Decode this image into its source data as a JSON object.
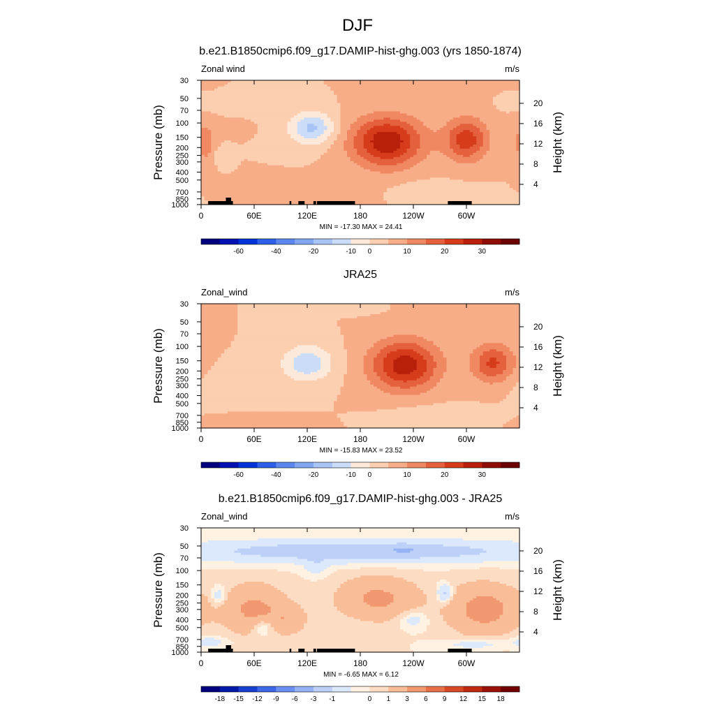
{
  "figure_title": "DJF",
  "palettes": {
    "full": [
      "#00007f",
      "#0011b2",
      "#0032d8",
      "#2e5fe8",
      "#5a86ee",
      "#82a6f2",
      "#a8c3f6",
      "#cbdcf8",
      "#fde9da",
      "#fccfb1",
      "#f7ad88",
      "#f08862",
      "#e5613d",
      "#d63c1c",
      "#b8200b",
      "#8e0d05",
      "#6b0000"
    ],
    "diff": [
      "#00007f",
      "#001aa8",
      "#1a3fd0",
      "#3d67e6",
      "#6b8ff0",
      "#95b2f4",
      "#bcd0f8",
      "#dce8fb",
      "#fff2e2",
      "#fddcc4",
      "#f9bd98",
      "#f29870",
      "#e87049",
      "#d84a26",
      "#bf2a10",
      "#9a1207",
      "#700000"
    ]
  },
  "chart_data": [
    {
      "type": "heatmap",
      "title": "b.e21.B1850cmip6.f09_g17.DAMIP-hist-ghg.003 (yrs 1850-1874)",
      "left_label": "Zonal wind",
      "unit": "m/s",
      "ylabel": "Pressure (mb)",
      "ylabel_right": "Height (km)",
      "x_ticks": [
        "0",
        "60E",
        "120E",
        "180",
        "120W",
        "60W"
      ],
      "y_ticks": [
        "30",
        "50",
        "70",
        "100",
        "150",
        "200",
        "250",
        "300",
        "400",
        "500",
        "700",
        "850",
        "1000"
      ],
      "y_ticks_right": [
        "20",
        "16",
        "12",
        "8",
        "4"
      ],
      "stats": "MIN = -17.30  MAX =  24.41",
      "colorbar_labels": [
        "-60",
        "-40",
        "-20",
        "-10",
        "0",
        "10",
        "20",
        "30"
      ],
      "palette": "full",
      "levels": [
        -70,
        -60,
        -50,
        -40,
        -30,
        -20,
        -15,
        -10,
        -5,
        0,
        5,
        10,
        15,
        20,
        25,
        30,
        35
      ],
      "features": [
        {
          "lon": 125,
          "p": 115,
          "amp": -16,
          "slon": 26,
          "sp": 0.45
        },
        {
          "lon": 210,
          "p": 170,
          "amp": 24,
          "slon": 40,
          "sp": 0.7
        },
        {
          "lon": 300,
          "p": 160,
          "amp": 18,
          "slon": 24,
          "sp": 0.6
        },
        {
          "lon": 5,
          "p": 170,
          "amp": 8,
          "slon": 12,
          "sp": 0.6
        },
        {
          "lon": 22,
          "p": 250,
          "amp": -5,
          "slon": 8,
          "sp": 0.25
        },
        {
          "lon": 120,
          "p": 700,
          "amp": 4,
          "slon": 55,
          "sp": 0.3
        },
        {
          "lon": 260,
          "p": 680,
          "amp": -4,
          "slon": 40,
          "sp": 0.25
        },
        {
          "lon": 300,
          "p": 850,
          "amp": -4,
          "slon": 30,
          "sp": 0.2
        },
        {
          "lon": 30,
          "p": 60,
          "amp": -4,
          "slon": 35,
          "sp": 0.18
        },
        {
          "lon": 40,
          "p": 120,
          "amp": 3,
          "slon": 12,
          "sp": 0.15
        }
      ],
      "land": [
        [
          8,
          25
        ],
        [
          22,
          30
        ],
        [
          30,
          36
        ],
        [
          100,
          102
        ],
        [
          110,
          117
        ],
        [
          127,
          130
        ],
        [
          131,
          174
        ],
        [
          279,
          306
        ]
      ],
      "land_peaks": [
        [
          28,
          34
        ]
      ]
    },
    {
      "type": "heatmap",
      "title": "JRA25",
      "left_label": "Zonal_wind",
      "unit": "m/s",
      "ylabel": "Pressure (mb)",
      "ylabel_right": "Height (km)",
      "x_ticks": [
        "0",
        "60E",
        "120E",
        "180",
        "120W",
        "60W"
      ],
      "y_ticks": [
        "30",
        "50",
        "70",
        "100",
        "150",
        "200",
        "250",
        "300",
        "400",
        "500",
        "700",
        "850",
        "1000"
      ],
      "y_ticks_right": [
        "20",
        "16",
        "12",
        "8",
        "4"
      ],
      "stats": "MIN = -15.83  MAX =  23.52",
      "colorbar_labels": [
        "-60",
        "-40",
        "-20",
        "-10",
        "0",
        "10",
        "20",
        "30"
      ],
      "palette": "full",
      "levels": [
        -70,
        -60,
        -50,
        -40,
        -30,
        -20,
        -15,
        -10,
        -5,
        0,
        5,
        10,
        15,
        20,
        25,
        30,
        35
      ],
      "features": [
        {
          "lon": 120,
          "p": 160,
          "amp": -14,
          "slon": 28,
          "sp": 0.5
        },
        {
          "lon": 230,
          "p": 170,
          "amp": 23,
          "slon": 38,
          "sp": 0.7
        },
        {
          "lon": 330,
          "p": 160,
          "amp": 16,
          "slon": 24,
          "sp": 0.55
        },
        {
          "lon": 40,
          "p": 300,
          "amp": -4,
          "slon": 45,
          "sp": 0.45
        },
        {
          "lon": 60,
          "p": 880,
          "amp": 4,
          "slon": 40,
          "sp": 0.2
        },
        {
          "lon": 265,
          "p": 700,
          "amp": -5,
          "slon": 45,
          "sp": 0.25
        },
        {
          "lon": 160,
          "p": 35,
          "amp": -3,
          "slon": 30,
          "sp": 0.12
        }
      ],
      "land": [],
      "land_peaks": []
    },
    {
      "type": "heatmap",
      "title": "b.e21.B1850cmip6.f09_g17.DAMIP-hist-ghg.003 - JRA25",
      "left_label": "Zonal_wind",
      "unit": "m/s",
      "ylabel": "Pressure (mb)",
      "ylabel_right": "Height (km)",
      "x_ticks": [
        "0",
        "60E",
        "120E",
        "180",
        "120W",
        "60W"
      ],
      "y_ticks": [
        "30",
        "50",
        "70",
        "100",
        "150",
        "200",
        "250",
        "300",
        "400",
        "500",
        "700",
        "850",
        "1000"
      ],
      "y_ticks_right": [
        "20",
        "16",
        "12",
        "8",
        "4"
      ],
      "stats": "MIN =  -6.65  MAX =   6.12",
      "colorbar_labels": [
        "-18",
        "-15",
        "-12",
        "-9",
        "-6",
        "-3",
        "-1",
        "0",
        "1",
        "3",
        "6",
        "9",
        "12",
        "15",
        "18"
      ],
      "palette": "diff",
      "levels": [
        -21,
        -18,
        -15,
        -12,
        -9,
        -6,
        -3,
        -1,
        0,
        1,
        3,
        6,
        9,
        12,
        15,
        18
      ],
      "features": [
        {
          "lon": 180,
          "p": 58,
          "amp": -5,
          "slon": 200,
          "sp": 0.3
        },
        {
          "lon": 230,
          "p": 55,
          "amp": -2,
          "slon": 18,
          "sp": 0.12
        },
        {
          "lon": 130,
          "p": 90,
          "amp": -2,
          "slon": 12,
          "sp": 0.25
        },
        {
          "lon": 60,
          "p": 300,
          "amp": 3.5,
          "slon": 35,
          "sp": 0.7
        },
        {
          "lon": 200,
          "p": 220,
          "amp": 3.5,
          "slon": 45,
          "sp": 0.6
        },
        {
          "lon": 320,
          "p": 300,
          "amp": 4,
          "slon": 40,
          "sp": 0.7
        },
        {
          "lon": 20,
          "p": 200,
          "amp": -2.5,
          "slon": 8,
          "sp": 0.25
        },
        {
          "lon": 275,
          "p": 190,
          "amp": -4,
          "slon": 8,
          "sp": 0.25
        },
        {
          "lon": 70,
          "p": 500,
          "amp": -2.5,
          "slon": 12,
          "sp": 0.25
        },
        {
          "lon": 240,
          "p": 400,
          "amp": -2,
          "slon": 15,
          "sp": 0.25
        },
        {
          "lon": 100,
          "p": 400,
          "amp": 2,
          "slon": 20,
          "sp": 0.4
        },
        {
          "lon": 10,
          "p": 750,
          "amp": -2,
          "slon": 20,
          "sp": 0.15
        },
        {
          "lon": 310,
          "p": 800,
          "amp": -2,
          "slon": 35,
          "sp": 0.15
        }
      ],
      "land": [
        [
          8,
          25
        ],
        [
          22,
          30
        ],
        [
          30,
          36
        ],
        [
          100,
          102
        ],
        [
          110,
          117
        ],
        [
          127,
          130
        ],
        [
          131,
          174
        ],
        [
          279,
          306
        ]
      ],
      "land_peaks": [
        [
          28,
          34
        ]
      ]
    }
  ]
}
